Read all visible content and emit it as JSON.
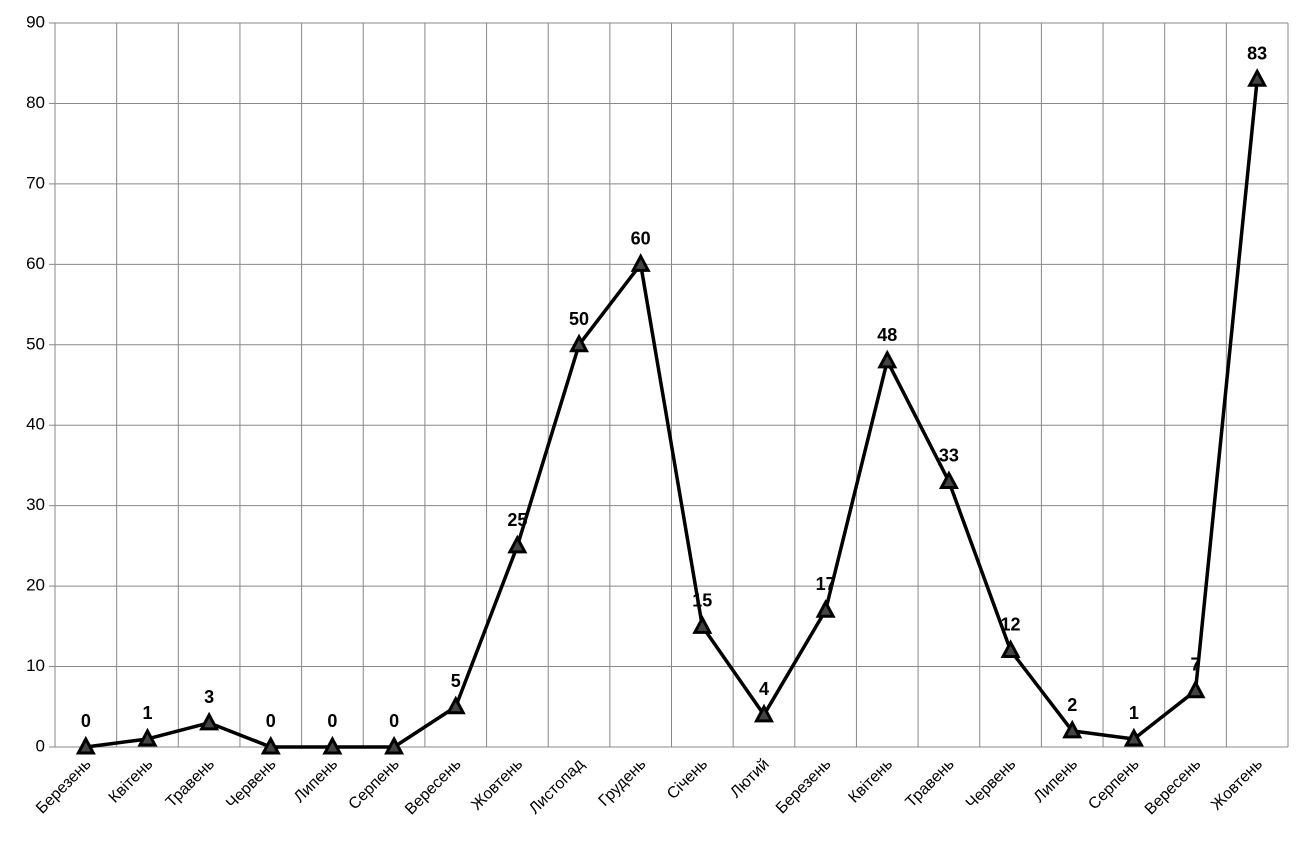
{
  "chart_data": {
    "type": "line",
    "categories": [
      "Березень",
      "Квітень",
      "Травень",
      "Червень",
      "Липень",
      "Серпень",
      "Вересень",
      "Жовтень",
      "Листопад",
      "Грудень",
      "Січень",
      "Лютий",
      "Березень",
      "Квітень",
      "Травень",
      "Червень",
      "Липень",
      "Серпень",
      "Вересень",
      "Жовтень"
    ],
    "values": [
      0,
      1,
      3,
      0,
      0,
      0,
      5,
      25,
      50,
      60,
      15,
      4,
      17,
      48,
      33,
      12,
      2,
      1,
      7,
      83
    ],
    "color": "#000000",
    "ylim": [
      0,
      90
    ],
    "yticks": [
      0,
      10,
      20,
      30,
      40,
      50,
      60,
      70,
      80,
      90
    ],
    "grid": true
  }
}
